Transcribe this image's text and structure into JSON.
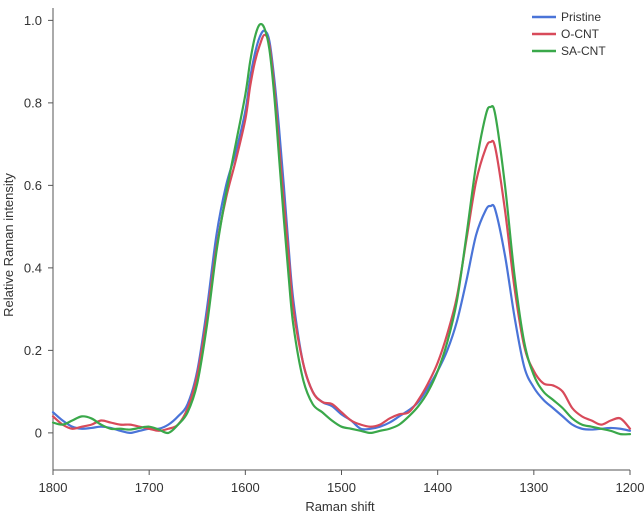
{
  "chart_data": {
    "type": "line",
    "title": "",
    "xlabel": "Raman shift",
    "ylabel": "Relative Raman intensity",
    "xlim": [
      1800,
      1200
    ],
    "ylim": [
      -0.09,
      1.03
    ],
    "x_reversed": true,
    "x_ticks": [
      1800,
      1700,
      1600,
      1500,
      1400,
      1300,
      1200
    ],
    "x_tick_labels": [
      "1800",
      "1700",
      "1600",
      "1500",
      "1400",
      "1300",
      "1200"
    ],
    "y_ticks": [
      0,
      0.2,
      0.4,
      0.6,
      0.8,
      1.0
    ],
    "y_tick_labels": [
      "0",
      "0.2",
      "0.4",
      "0.6",
      "0.8",
      "1.0"
    ],
    "grid": false,
    "legend_position": "top-right",
    "series": [
      {
        "name": "Pristine",
        "color": "#4a74d8",
        "points": [
          [
            1800,
            0.05
          ],
          [
            1790,
            0.03
          ],
          [
            1780,
            0.015
          ],
          [
            1770,
            0.01
          ],
          [
            1760,
            0.012
          ],
          [
            1750,
            0.015
          ],
          [
            1740,
            0.012
          ],
          [
            1730,
            0.005
          ],
          [
            1720,
            0.0
          ],
          [
            1710,
            0.005
          ],
          [
            1700,
            0.01
          ],
          [
            1690,
            0.01
          ],
          [
            1680,
            0.02
          ],
          [
            1670,
            0.04
          ],
          [
            1660,
            0.07
          ],
          [
            1650,
            0.15
          ],
          [
            1640,
            0.3
          ],
          [
            1630,
            0.48
          ],
          [
            1620,
            0.6
          ],
          [
            1610,
            0.68
          ],
          [
            1600,
            0.78
          ],
          [
            1595,
            0.86
          ],
          [
            1590,
            0.92
          ],
          [
            1585,
            0.96
          ],
          [
            1580,
            0.975
          ],
          [
            1575,
            0.95
          ],
          [
            1570,
            0.86
          ],
          [
            1565,
            0.74
          ],
          [
            1560,
            0.6
          ],
          [
            1555,
            0.45
          ],
          [
            1550,
            0.32
          ],
          [
            1540,
            0.17
          ],
          [
            1530,
            0.1
          ],
          [
            1520,
            0.075
          ],
          [
            1510,
            0.065
          ],
          [
            1500,
            0.045
          ],
          [
            1490,
            0.03
          ],
          [
            1480,
            0.01
          ],
          [
            1470,
            0.01
          ],
          [
            1460,
            0.015
          ],
          [
            1450,
            0.025
          ],
          [
            1440,
            0.04
          ],
          [
            1430,
            0.055
          ],
          [
            1420,
            0.075
          ],
          [
            1410,
            0.11
          ],
          [
            1400,
            0.15
          ],
          [
            1390,
            0.2
          ],
          [
            1380,
            0.27
          ],
          [
            1370,
            0.37
          ],
          [
            1360,
            0.48
          ],
          [
            1350,
            0.54
          ],
          [
            1345,
            0.55
          ],
          [
            1340,
            0.54
          ],
          [
            1330,
            0.43
          ],
          [
            1320,
            0.28
          ],
          [
            1310,
            0.16
          ],
          [
            1300,
            0.11
          ],
          [
            1290,
            0.08
          ],
          [
            1280,
            0.06
          ],
          [
            1270,
            0.04
          ],
          [
            1260,
            0.02
          ],
          [
            1250,
            0.01
          ],
          [
            1240,
            0.008
          ],
          [
            1230,
            0.01
          ],
          [
            1220,
            0.012
          ],
          [
            1210,
            0.01
          ],
          [
            1200,
            0.005
          ]
        ]
      },
      {
        "name": "O-CNT",
        "color": "#d84a5a",
        "points": [
          [
            1800,
            0.04
          ],
          [
            1790,
            0.02
          ],
          [
            1780,
            0.01
          ],
          [
            1770,
            0.015
          ],
          [
            1760,
            0.02
          ],
          [
            1750,
            0.03
          ],
          [
            1740,
            0.025
          ],
          [
            1730,
            0.02
          ],
          [
            1720,
            0.02
          ],
          [
            1710,
            0.015
          ],
          [
            1700,
            0.01
          ],
          [
            1690,
            0.005
          ],
          [
            1680,
            0.01
          ],
          [
            1670,
            0.02
          ],
          [
            1660,
            0.06
          ],
          [
            1650,
            0.14
          ],
          [
            1640,
            0.28
          ],
          [
            1630,
            0.45
          ],
          [
            1620,
            0.57
          ],
          [
            1610,
            0.66
          ],
          [
            1600,
            0.76
          ],
          [
            1595,
            0.84
          ],
          [
            1590,
            0.9
          ],
          [
            1585,
            0.94
          ],
          [
            1580,
            0.965
          ],
          [
            1575,
            0.94
          ],
          [
            1570,
            0.84
          ],
          [
            1565,
            0.7
          ],
          [
            1560,
            0.56
          ],
          [
            1555,
            0.43
          ],
          [
            1550,
            0.3
          ],
          [
            1540,
            0.17
          ],
          [
            1530,
            0.1
          ],
          [
            1520,
            0.075
          ],
          [
            1510,
            0.07
          ],
          [
            1500,
            0.05
          ],
          [
            1490,
            0.03
          ],
          [
            1480,
            0.02
          ],
          [
            1470,
            0.015
          ],
          [
            1460,
            0.02
          ],
          [
            1450,
            0.035
          ],
          [
            1440,
            0.045
          ],
          [
            1430,
            0.05
          ],
          [
            1420,
            0.08
          ],
          [
            1410,
            0.12
          ],
          [
            1400,
            0.17
          ],
          [
            1390,
            0.24
          ],
          [
            1380,
            0.33
          ],
          [
            1370,
            0.47
          ],
          [
            1360,
            0.61
          ],
          [
            1350,
            0.69
          ],
          [
            1345,
            0.705
          ],
          [
            1340,
            0.69
          ],
          [
            1330,
            0.54
          ],
          [
            1320,
            0.35
          ],
          [
            1310,
            0.21
          ],
          [
            1300,
            0.15
          ],
          [
            1290,
            0.12
          ],
          [
            1280,
            0.115
          ],
          [
            1270,
            0.1
          ],
          [
            1260,
            0.06
          ],
          [
            1250,
            0.04
          ],
          [
            1240,
            0.03
          ],
          [
            1230,
            0.02
          ],
          [
            1220,
            0.03
          ],
          [
            1210,
            0.035
          ],
          [
            1200,
            0.01
          ]
        ]
      },
      {
        "name": "SA-CNT",
        "color": "#3aa84a",
        "points": [
          [
            1800,
            0.025
          ],
          [
            1790,
            0.02
          ],
          [
            1780,
            0.03
          ],
          [
            1770,
            0.04
          ],
          [
            1760,
            0.035
          ],
          [
            1750,
            0.02
          ],
          [
            1740,
            0.01
          ],
          [
            1730,
            0.01
          ],
          [
            1720,
            0.008
          ],
          [
            1710,
            0.012
          ],
          [
            1700,
            0.015
          ],
          [
            1690,
            0.008
          ],
          [
            1680,
            0.0
          ],
          [
            1670,
            0.02
          ],
          [
            1660,
            0.05
          ],
          [
            1650,
            0.12
          ],
          [
            1640,
            0.26
          ],
          [
            1630,
            0.44
          ],
          [
            1620,
            0.58
          ],
          [
            1610,
            0.7
          ],
          [
            1600,
            0.82
          ],
          [
            1595,
            0.9
          ],
          [
            1590,
            0.96
          ],
          [
            1585,
            0.99
          ],
          [
            1580,
            0.98
          ],
          [
            1575,
            0.93
          ],
          [
            1570,
            0.82
          ],
          [
            1565,
            0.67
          ],
          [
            1560,
            0.52
          ],
          [
            1555,
            0.38
          ],
          [
            1550,
            0.26
          ],
          [
            1540,
            0.13
          ],
          [
            1530,
            0.07
          ],
          [
            1520,
            0.05
          ],
          [
            1510,
            0.03
          ],
          [
            1500,
            0.015
          ],
          [
            1490,
            0.01
          ],
          [
            1480,
            0.005
          ],
          [
            1470,
            0.0
          ],
          [
            1460,
            0.005
          ],
          [
            1450,
            0.01
          ],
          [
            1440,
            0.02
          ],
          [
            1430,
            0.04
          ],
          [
            1420,
            0.065
          ],
          [
            1410,
            0.1
          ],
          [
            1400,
            0.15
          ],
          [
            1390,
            0.22
          ],
          [
            1380,
            0.32
          ],
          [
            1370,
            0.48
          ],
          [
            1360,
            0.65
          ],
          [
            1350,
            0.77
          ],
          [
            1345,
            0.79
          ],
          [
            1340,
            0.77
          ],
          [
            1330,
            0.6
          ],
          [
            1320,
            0.38
          ],
          [
            1310,
            0.22
          ],
          [
            1300,
            0.14
          ],
          [
            1290,
            0.1
          ],
          [
            1280,
            0.08
          ],
          [
            1270,
            0.06
          ],
          [
            1260,
            0.035
          ],
          [
            1250,
            0.02
          ],
          [
            1240,
            0.015
          ],
          [
            1230,
            0.01
          ],
          [
            1220,
            0.005
          ],
          [
            1210,
            -0.003
          ],
          [
            1200,
            -0.003
          ]
        ]
      }
    ]
  }
}
